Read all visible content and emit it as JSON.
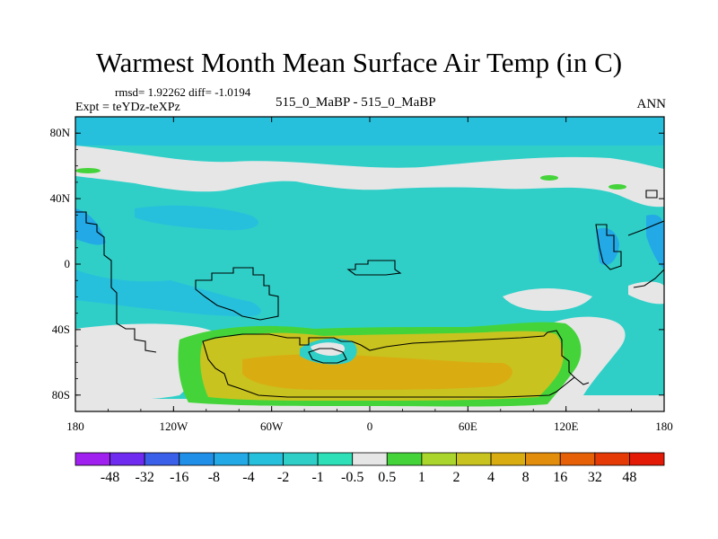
{
  "figure": {
    "title": "Warmest Month Mean Surface Air Temp (in C)",
    "stats": "rmsd= 1.92262 diff= -1.0194",
    "experiment": "Expt = teYDz-teXPz",
    "case_label": "515_0_MaBP - 515_0_MaBP",
    "season": "ANN"
  },
  "map": {
    "projection": "cylindrical equidistant",
    "lon_range": [
      -180,
      180
    ],
    "lat_range": [
      -90,
      90
    ],
    "lon_ticks": [
      {
        "lon": -180,
        "label": "180"
      },
      {
        "lon": -120,
        "label": "120W"
      },
      {
        "lon": -60,
        "label": "60W"
      },
      {
        "lon": 0,
        "label": "0"
      },
      {
        "lon": 60,
        "label": "60E"
      },
      {
        "lon": 120,
        "label": "120E"
      },
      {
        "lon": 180,
        "label": "180"
      }
    ],
    "lat_ticks": [
      {
        "lat": 80,
        "label": "80N"
      },
      {
        "lat": 40,
        "label": "40N"
      },
      {
        "lat": 0,
        "label": "0"
      },
      {
        "lat": -40,
        "label": "40S"
      },
      {
        "lat": -80,
        "label": "80S"
      }
    ]
  },
  "colorbar": {
    "levels": [
      "-48",
      "-32",
      "-16",
      "-8",
      "-4",
      "-2",
      "-1",
      "-0.5",
      "0.5",
      "1",
      "2",
      "4",
      "8",
      "16",
      "32",
      "48"
    ],
    "colors": [
      "#a020f0",
      "#6f2bef",
      "#3a5fe8",
      "#1f8fe8",
      "#22a9e6",
      "#27c0dc",
      "#2fcfc8",
      "#2ee0b8",
      "#e6e6e6",
      "#44d43a",
      "#a9d52c",
      "#c8c31f",
      "#d9ad12",
      "#e38d0d",
      "#e66008",
      "#e63a06",
      "#e31a05"
    ]
  }
}
